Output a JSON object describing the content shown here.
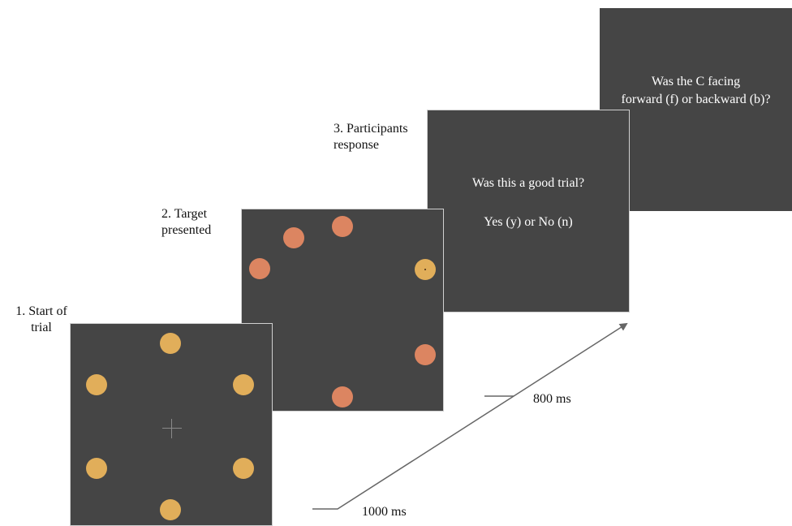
{
  "steps": [
    {
      "label_line1": "1. Start of",
      "label_line2": "trial"
    },
    {
      "label_line1": "2. Target",
      "label_line2": "presented"
    },
    {
      "label_line1": "3. Participants",
      "label_line2": "response"
    }
  ],
  "screen3": {
    "question": "Was this a good trial?",
    "options": "Yes (y) or No (n)"
  },
  "screen4": {
    "line1": "Was the C facing",
    "line2": "forward (f) or backward (b)?"
  },
  "timings": {
    "first": "1000 ms",
    "second": "800 ms"
  },
  "colors": {
    "screen_background": "#454545",
    "stimulus_yellow": "#e1ae5a",
    "stimulus_salmon": "#dc8561"
  }
}
